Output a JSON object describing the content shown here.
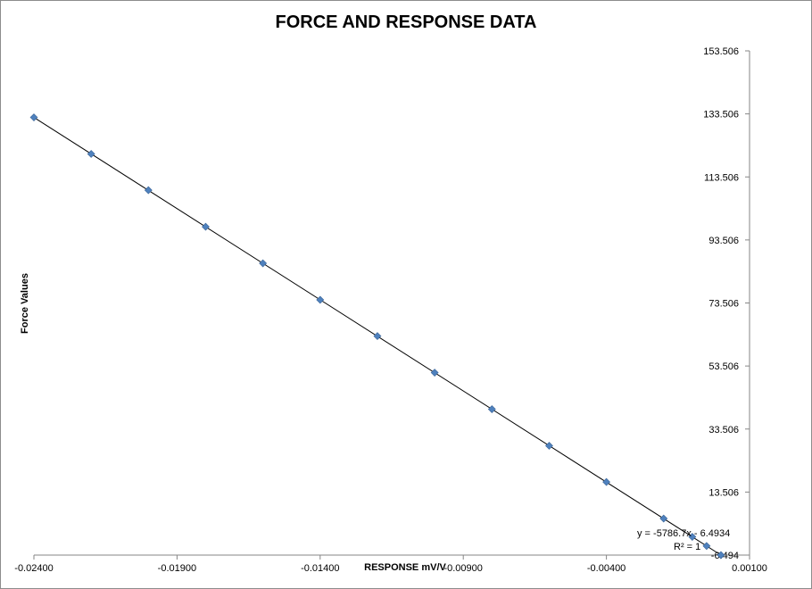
{
  "chart_data": {
    "type": "scatter",
    "title": "FORCE AND RESPONSE DATA",
    "xlabel": "RESPONSE mV/V",
    "ylabel": "Force Values",
    "xlim": [
      -0.024,
      0.001
    ],
    "ylim": [
      -6.494,
      153.506
    ],
    "x_ticks": [
      -0.024,
      -0.019,
      -0.014,
      -0.009,
      -0.004,
      0.001
    ],
    "x_tick_labels": [
      "-0.02400",
      "-0.01900",
      "-0.01400",
      "-0.00900",
      "-0.00400",
      "0.00100"
    ],
    "y_ticks": [
      153.506,
      133.506,
      113.506,
      93.506,
      73.506,
      53.506,
      33.506,
      13.506,
      -6.494
    ],
    "y_tick_labels": [
      "153.506",
      "133.506",
      "113.506",
      "93.506",
      "73.506",
      "53.506",
      "33.506",
      "13.506",
      "-6.494"
    ],
    "series": [
      {
        "color": "#4F81BD",
        "x": [
          -0.024,
          -0.022,
          -0.02,
          -0.018,
          -0.016,
          -0.014,
          -0.012,
          -0.01,
          -0.008,
          -0.006,
          -0.004,
          -0.002,
          -0.001,
          -0.0005,
          0.0
        ],
        "y": [
          132.4,
          120.8,
          109.3,
          97.7,
          86.1,
          74.5,
          63.0,
          51.4,
          39.8,
          28.2,
          16.7,
          5.1,
          -0.7,
          -3.6,
          -6.5
        ]
      }
    ],
    "trendline": {
      "slope": -5786.7,
      "intercept": -6.4934,
      "equation_label": "y = -5786.7x - 6.4934",
      "r2_label": "R² = 1"
    },
    "grid": false,
    "legend": "none"
  }
}
